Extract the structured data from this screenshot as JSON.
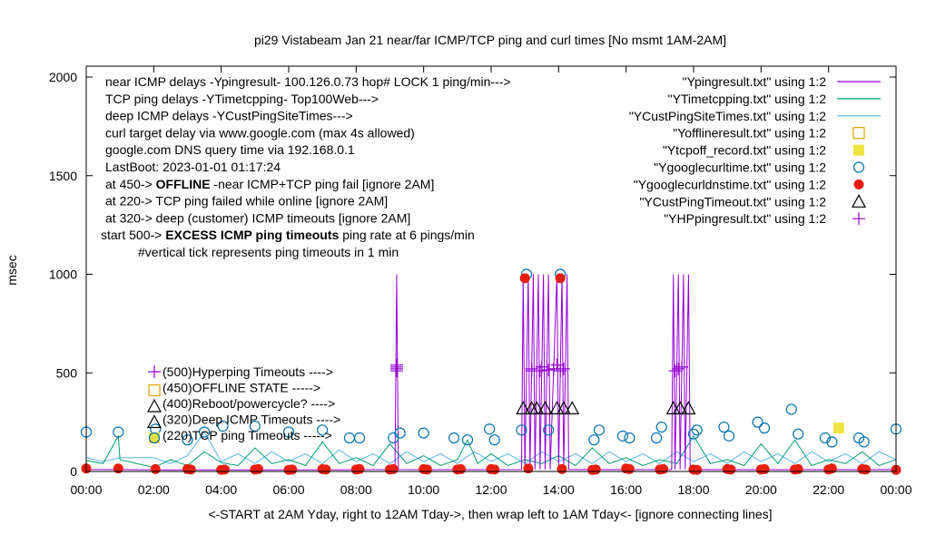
{
  "chart_data": {
    "type": "line",
    "title": "pi29 Vistabeam Jan 21  near/far ICMP/TCP ping and curl times [No msmt 1AM-2AM]",
    "xlabel": "<-START at 2AM Yday, right to 12AM Tday->, then wrap left to 1AM Tday<- [ignore connecting lines]",
    "ylabel": "msec",
    "xlim": [
      0,
      24
    ],
    "ylim": [
      0,
      2000
    ],
    "xticks": [
      "00:00",
      "02:00",
      "04:00",
      "06:00",
      "08:00",
      "10:00",
      "12:00",
      "14:00",
      "16:00",
      "18:00",
      "20:00",
      "22:00",
      "00:00"
    ],
    "yticks": [
      "0",
      "500",
      "1000",
      "1500",
      "2000"
    ],
    "notes": [
      {
        "pre": "near ICMP delays -Ypingresult- 100.126.0.73 hop# LOCK 1 ping/min--->",
        "bold": "",
        "post": ""
      },
      {
        "pre": "TCP ping delays -YTimetcpping- Top100Web--->",
        "bold": "",
        "post": ""
      },
      {
        "pre": "deep ICMP delays -YCustPingSiteTimes--->",
        "bold": "",
        "post": ""
      },
      {
        "pre": "curl target delay via www.google.com (max 4s allowed)",
        "bold": "",
        "post": ""
      },
      {
        "pre": "google.com DNS query time via 192.168.0.1",
        "bold": "",
        "post": ""
      },
      {
        "pre": "LastBoot: 2023-01-01 01:17:24",
        "bold": "",
        "post": ""
      },
      {
        "pre": "at 450->  ",
        "bold": "OFFLINE",
        "post": " -near ICMP+TCP ping fail [ignore 2AM]"
      },
      {
        "pre": "at 220-> TCP ping failed while online [ignore 2AM]",
        "bold": "",
        "post": ""
      },
      {
        "pre": "at 320-> deep (customer) ICMP timeouts [ignore 2AM]",
        "bold": "",
        "post": ""
      },
      {
        "pre": "start 500->  ",
        "bold": "EXCESS ICMP ping timeouts",
        "post": "  ping rate at 6 pings/min"
      },
      {
        "pre": "#vertical tick represents ping timeouts in 1 min",
        "bold": "",
        "post": ""
      }
    ],
    "level_labels": [
      {
        "text": "(500)Hyperping Timeouts ---->",
        "marker": "plus",
        "color": "#9400d3"
      },
      {
        "text": "(450)OFFLINE STATE ----->",
        "marker": "square-open",
        "color": "#e69f00"
      },
      {
        "text": "(400)Reboot/powercycle? ---->",
        "marker": "triangle",
        "color": "#000000"
      },
      {
        "text": "(320)Deep ICMP Timeouts ---->",
        "marker": "triangle",
        "color": "#000000"
      },
      {
        "text": "(220)TCP ping Timeouts ----->",
        "marker": "square-filled",
        "color": "#f0e442"
      }
    ],
    "series": [
      {
        "name": "\"Ypingresult.txt\" using 1:2",
        "style": "line",
        "color": "#9400d3",
        "points": [
          [
            0,
            10
          ],
          [
            1,
            10
          ],
          [
            2,
            8
          ],
          [
            4,
            8
          ],
          [
            6,
            8
          ],
          [
            8,
            9
          ],
          [
            9.15,
            10
          ],
          [
            9.2,
            1000
          ],
          [
            9.25,
            10
          ],
          [
            11,
            9
          ],
          [
            12.9,
            10
          ],
          [
            12.95,
            1000
          ],
          [
            13.0,
            10
          ],
          [
            13.1,
            1000
          ],
          [
            13.15,
            10
          ],
          [
            13.25,
            1000
          ],
          [
            13.3,
            10
          ],
          [
            13.4,
            1000
          ],
          [
            13.45,
            10
          ],
          [
            13.55,
            1000
          ],
          [
            13.6,
            10
          ],
          [
            13.7,
            1000
          ],
          [
            13.75,
            10
          ],
          [
            13.95,
            1000
          ],
          [
            14.0,
            10
          ],
          [
            14.1,
            1000
          ],
          [
            14.15,
            10
          ],
          [
            14.25,
            1000
          ],
          [
            14.3,
            10
          ],
          [
            16,
            9
          ],
          [
            17.35,
            10
          ],
          [
            17.4,
            1000
          ],
          [
            17.45,
            10
          ],
          [
            17.55,
            1000
          ],
          [
            17.6,
            10
          ],
          [
            17.7,
            1000
          ],
          [
            17.75,
            10
          ],
          [
            17.85,
            1000
          ],
          [
            17.9,
            10
          ],
          [
            20,
            9
          ],
          [
            22,
            9
          ],
          [
            24,
            10
          ]
        ]
      },
      {
        "name": "\"YTimetcpping.txt\" using 1:2",
        "style": "line",
        "color": "#009e73",
        "points": [
          [
            0,
            55
          ],
          [
            0.5,
            40
          ],
          [
            0.95,
            180
          ],
          [
            1.0,
            60
          ],
          [
            2.0,
            20
          ],
          [
            2.5,
            60
          ],
          [
            3,
            30
          ],
          [
            3.5,
            100
          ],
          [
            4,
            45
          ],
          [
            4.5,
            30
          ],
          [
            5,
            120
          ],
          [
            5.5,
            40
          ],
          [
            6,
            60
          ],
          [
            6.5,
            30
          ],
          [
            7,
            150
          ],
          [
            7.5,
            40
          ],
          [
            8,
            70
          ],
          [
            8.5,
            30
          ],
          [
            9,
            140
          ],
          [
            9.5,
            40
          ],
          [
            10,
            80
          ],
          [
            10.5,
            30
          ],
          [
            11,
            60
          ],
          [
            11.3,
            160
          ],
          [
            11.6,
            40
          ],
          [
            12,
            90
          ],
          [
            12.5,
            30
          ],
          [
            13,
            60
          ],
          [
            13.5,
            40
          ],
          [
            14,
            80
          ],
          [
            14.5,
            30
          ],
          [
            15,
            120
          ],
          [
            15.5,
            40
          ],
          [
            16,
            70
          ],
          [
            16.5,
            30
          ],
          [
            17,
            60
          ],
          [
            17.5,
            40
          ],
          [
            18,
            180
          ],
          [
            18.5,
            40
          ],
          [
            19,
            60
          ],
          [
            19.5,
            30
          ],
          [
            20,
            140
          ],
          [
            20.5,
            40
          ],
          [
            21,
            160
          ],
          [
            21.5,
            30
          ],
          [
            22,
            60
          ],
          [
            22.5,
            40
          ],
          [
            23,
            100
          ],
          [
            23.5,
            30
          ],
          [
            24,
            60
          ]
        ]
      },
      {
        "name": "\"YCustPingSiteTimes.txt\" using 1:2",
        "style": "line",
        "color": "#56b4e9",
        "points": [
          [
            0,
            70
          ],
          [
            0.5,
            50
          ],
          [
            1,
            70
          ],
          [
            2,
            70
          ],
          [
            2.5,
            40
          ],
          [
            3,
            80
          ],
          [
            3.5,
            200
          ],
          [
            4,
            50
          ],
          [
            4.5,
            90
          ],
          [
            5,
            40
          ],
          [
            5.5,
            100
          ],
          [
            6,
            50
          ],
          [
            6.5,
            90
          ],
          [
            7,
            40
          ],
          [
            7.5,
            110
          ],
          [
            8,
            50
          ],
          [
            8.5,
            90
          ],
          [
            9,
            40
          ],
          [
            9.5,
            100
          ],
          [
            10,
            50
          ],
          [
            10.5,
            90
          ],
          [
            11,
            40
          ],
          [
            11.5,
            100
          ],
          [
            12,
            50
          ],
          [
            12.5,
            90
          ],
          [
            13,
            40
          ],
          [
            13.5,
            100
          ],
          [
            14,
            50
          ],
          [
            14.5,
            90
          ],
          [
            15,
            40
          ],
          [
            15.5,
            100
          ],
          [
            16,
            50
          ],
          [
            16.5,
            90
          ],
          [
            17,
            40
          ],
          [
            17.5,
            100
          ],
          [
            18,
            50
          ],
          [
            18.5,
            90
          ],
          [
            19,
            40
          ],
          [
            19.5,
            100
          ],
          [
            20,
            50
          ],
          [
            20.5,
            90
          ],
          [
            21,
            40
          ],
          [
            21.5,
            100
          ],
          [
            22,
            50
          ],
          [
            22.5,
            90
          ],
          [
            23,
            40
          ],
          [
            23.5,
            100
          ],
          [
            24,
            60
          ]
        ]
      },
      {
        "name": "\"Yofflineresult.txt\" using 1:2",
        "style": "square-open",
        "color": "#e69f00",
        "points": []
      },
      {
        "name": "\"Ytcpoff_record.txt\" using 1:2",
        "style": "square-filled",
        "color": "#f0e442",
        "points": [
          [
            22.3,
            220
          ]
        ]
      },
      {
        "name": "\"Ygooglecurltime.txt\" using 1:2",
        "style": "circle-open",
        "color": "#0072b2",
        "points": [
          [
            0,
            200
          ],
          [
            0.95,
            200
          ],
          [
            2.05,
            215
          ],
          [
            3.0,
            160
          ],
          [
            3.5,
            200
          ],
          [
            4.05,
            230
          ],
          [
            5.0,
            230
          ],
          [
            6.0,
            200
          ],
          [
            7.0,
            210
          ],
          [
            7.8,
            170
          ],
          [
            8.1,
            170
          ],
          [
            9.1,
            170
          ],
          [
            9.3,
            195
          ],
          [
            10.0,
            195
          ],
          [
            10.9,
            170
          ],
          [
            11.3,
            160
          ],
          [
            11.95,
            215
          ],
          [
            12.1,
            160
          ],
          [
            12.9,
            210
          ],
          [
            13.05,
            1000
          ],
          [
            13.7,
            210
          ],
          [
            14.05,
            1000
          ],
          [
            15.05,
            160
          ],
          [
            15.2,
            210
          ],
          [
            15.9,
            180
          ],
          [
            16.1,
            170
          ],
          [
            16.9,
            170
          ],
          [
            17.05,
            225
          ],
          [
            18.0,
            190
          ],
          [
            18.1,
            210
          ],
          [
            18.9,
            225
          ],
          [
            19.05,
            180
          ],
          [
            19.9,
            250
          ],
          [
            20.1,
            220
          ],
          [
            20.9,
            315
          ],
          [
            21.1,
            190
          ],
          [
            21.9,
            170
          ],
          [
            22.1,
            150
          ],
          [
            22.9,
            170
          ],
          [
            23.05,
            150
          ],
          [
            24,
            215
          ]
        ]
      },
      {
        "name": "\"Ygooglecurldnstime.txt\" using 1:2",
        "style": "circle-filled",
        "color": "#e51e10",
        "points": [
          [
            0,
            15
          ],
          [
            0.95,
            15
          ],
          [
            2.05,
            12
          ],
          [
            3,
            12
          ],
          [
            3.1,
            10
          ],
          [
            4,
            8
          ],
          [
            4.1,
            10
          ],
          [
            5,
            10
          ],
          [
            5.1,
            12
          ],
          [
            6,
            8
          ],
          [
            6.1,
            10
          ],
          [
            7,
            12
          ],
          [
            7.1,
            10
          ],
          [
            8,
            10
          ],
          [
            8.1,
            12
          ],
          [
            9,
            10
          ],
          [
            9.1,
            12
          ],
          [
            10,
            12
          ],
          [
            10.1,
            10
          ],
          [
            11,
            10
          ],
          [
            11.1,
            12
          ],
          [
            12,
            12
          ],
          [
            12.1,
            10
          ],
          [
            13.0,
            980
          ],
          [
            13.1,
            15
          ],
          [
            14.05,
            980
          ],
          [
            14.1,
            12
          ],
          [
            15,
            8
          ],
          [
            15.1,
            10
          ],
          [
            16,
            15
          ],
          [
            16.1,
            12
          ],
          [
            17,
            10
          ],
          [
            17.1,
            12
          ],
          [
            18,
            10
          ],
          [
            18.1,
            8
          ],
          [
            19,
            12
          ],
          [
            19.1,
            10
          ],
          [
            20,
            10
          ],
          [
            20.1,
            12
          ],
          [
            21,
            10
          ],
          [
            21.1,
            12
          ],
          [
            22,
            10
          ],
          [
            22.1,
            15
          ],
          [
            23,
            12
          ],
          [
            23.1,
            10
          ],
          [
            24,
            8
          ]
        ]
      },
      {
        "name": "\"YCustPingTimeout.txt\" using 1:2",
        "style": "triangle",
        "color": "#000000",
        "points": [
          [
            12.95,
            320
          ],
          [
            13.2,
            320
          ],
          [
            13.35,
            320
          ],
          [
            13.6,
            320
          ],
          [
            13.95,
            320
          ],
          [
            14.15,
            320
          ],
          [
            14.4,
            320
          ],
          [
            17.4,
            320
          ],
          [
            17.6,
            320
          ],
          [
            17.85,
            320
          ]
        ]
      },
      {
        "name": "\"YHPpingresult.txt\" using 1:2",
        "style": "plus",
        "color": "#9400d3",
        "points": [
          [
            9.2,
            510
          ],
          [
            9.2,
            520
          ],
          [
            9.2,
            530
          ],
          [
            9.2,
            540
          ],
          [
            13.2,
            510
          ],
          [
            13.2,
            520
          ],
          [
            13.45,
            510
          ],
          [
            13.5,
            530
          ],
          [
            13.7,
            515
          ],
          [
            13.85,
            520
          ],
          [
            13.95,
            540
          ],
          [
            14.05,
            510
          ],
          [
            14.15,
            520
          ],
          [
            17.45,
            510
          ],
          [
            17.55,
            520
          ],
          [
            17.65,
            530
          ]
        ]
      }
    ]
  }
}
